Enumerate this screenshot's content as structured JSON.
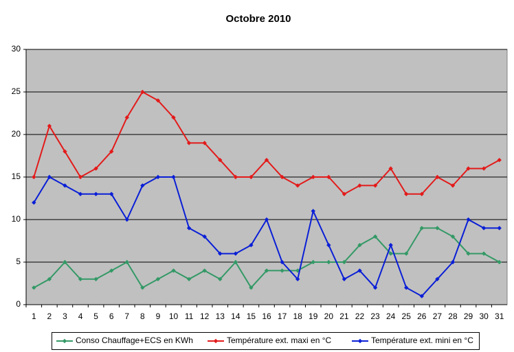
{
  "chart_data": {
    "type": "line",
    "title": "Octobre 2010",
    "categories": [
      "1",
      "2",
      "3",
      "4",
      "5",
      "6",
      "7",
      "8",
      "9",
      "10",
      "11",
      "12",
      "13",
      "14",
      "15",
      "16",
      "17",
      "18",
      "19",
      "20",
      "21",
      "22",
      "23",
      "24",
      "25",
      "26",
      "27",
      "28",
      "29",
      "30",
      "31"
    ],
    "series": [
      {
        "name": "Conso Chauffage+ECS en KWh",
        "color": "#339966",
        "values": [
          2,
          3,
          5,
          3,
          3,
          4,
          5,
          2,
          3,
          4,
          3,
          4,
          3,
          5,
          2,
          4,
          4,
          4,
          5,
          5,
          5,
          7,
          8,
          6,
          6,
          9,
          9,
          8,
          6,
          6,
          5
        ]
      },
      {
        "name": "Température ext. maxi en °C",
        "color": "#e31a1a",
        "values": [
          15,
          21,
          18,
          15,
          16,
          18,
          22,
          25,
          24,
          22,
          19,
          19,
          17,
          15,
          15,
          17,
          15,
          14,
          15,
          15,
          13,
          14,
          14,
          16,
          13,
          13,
          15,
          14,
          16,
          16,
          17
        ]
      },
      {
        "name": "Température ext. mini en °C",
        "color": "#0a1fd6",
        "values": [
          12,
          15,
          14,
          13,
          13,
          13,
          10,
          14,
          15,
          15,
          9,
          8,
          6,
          6,
          7,
          10,
          5,
          3,
          11,
          7,
          3,
          4,
          2,
          7,
          2,
          1,
          3,
          5,
          10,
          9,
          9
        ]
      }
    ],
    "ylim": [
      0,
      30
    ],
    "yticks": [
      0,
      5,
      10,
      15,
      20,
      25,
      30
    ],
    "grid": true,
    "plot_background": "#c0c0c0",
    "legend": "bottom"
  }
}
